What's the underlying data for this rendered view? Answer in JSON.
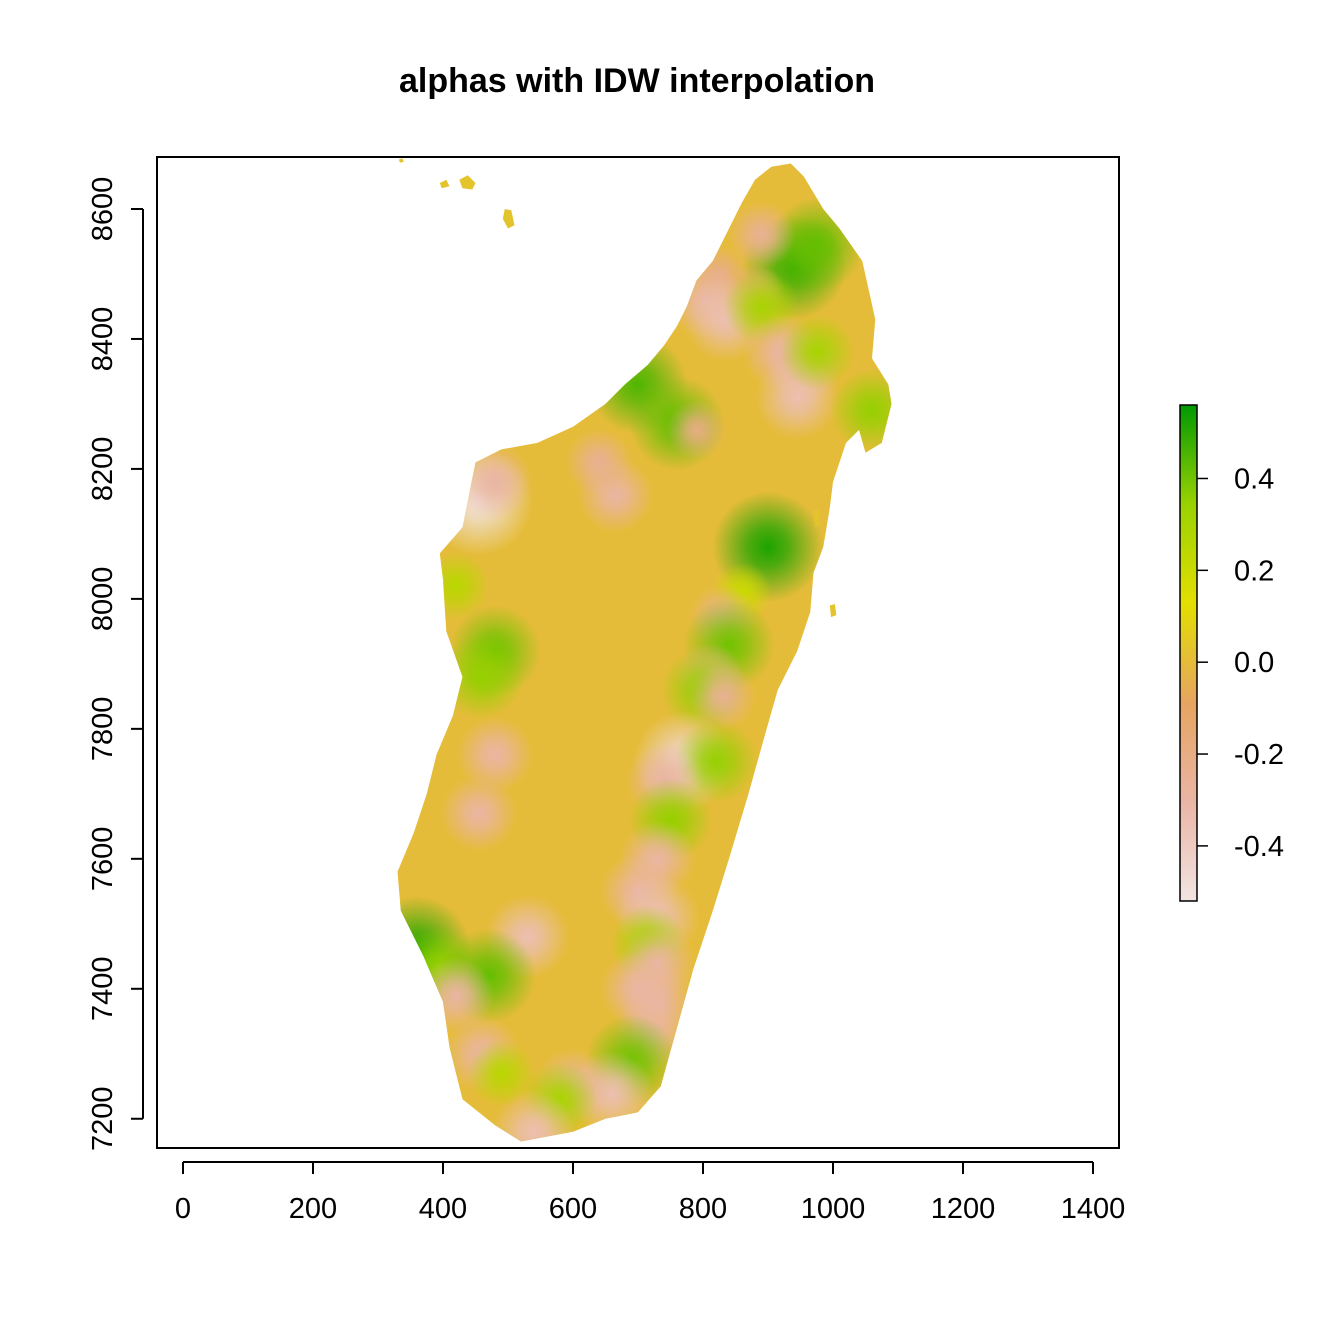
{
  "title": "alphas with IDW interpolation",
  "chart_data": {
    "type": "heatmap",
    "title": "alphas with IDW interpolation",
    "xlabel": "",
    "ylabel": "",
    "xlim": [
      -40,
      1440
    ],
    "ylim": [
      7155,
      8680
    ],
    "x_ticks": [
      0,
      200,
      400,
      600,
      800,
      1000,
      1200,
      1400
    ],
    "y_ticks": [
      7200,
      7400,
      7600,
      7800,
      8000,
      8200,
      8400,
      8600
    ],
    "legend": {
      "position": "right",
      "range": [
        -0.52,
        0.56
      ],
      "ticks": [
        -0.4,
        -0.2,
        0.0,
        0.2,
        0.4
      ],
      "tick_labels": [
        "-0.4",
        "-0.2",
        "0.0",
        "0.2",
        "0.4"
      ],
      "colors": [
        "#f2e5e2",
        "#eab5a5",
        "#e6a460",
        "#e3de00",
        "#99d200",
        "#009900"
      ]
    },
    "base_value": 0.0,
    "outline": [
      [
        935,
        8670
      ],
      [
        955,
        8650
      ],
      [
        985,
        8600
      ],
      [
        1010,
        8570
      ],
      [
        1045,
        8520
      ],
      [
        1065,
        8430
      ],
      [
        1060,
        8370
      ],
      [
        1085,
        8330
      ],
      [
        1090,
        8300
      ],
      [
        1075,
        8240
      ],
      [
        1050,
        8225
      ],
      [
        1040,
        8260
      ],
      [
        1020,
        8240
      ],
      [
        1000,
        8180
      ],
      [
        995,
        8140
      ],
      [
        985,
        8080
      ],
      [
        970,
        8040
      ],
      [
        965,
        7980
      ],
      [
        945,
        7920
      ],
      [
        915,
        7860
      ],
      [
        895,
        7790
      ],
      [
        870,
        7700
      ],
      [
        840,
        7600
      ],
      [
        815,
        7520
      ],
      [
        785,
        7430
      ],
      [
        760,
        7340
      ],
      [
        735,
        7250
      ],
      [
        700,
        7210
      ],
      [
        650,
        7200
      ],
      [
        600,
        7180
      ],
      [
        520,
        7165
      ],
      [
        480,
        7190
      ],
      [
        430,
        7230
      ],
      [
        410,
        7310
      ],
      [
        400,
        7380
      ],
      [
        370,
        7450
      ],
      [
        335,
        7520
      ],
      [
        330,
        7580
      ],
      [
        355,
        7640
      ],
      [
        375,
        7700
      ],
      [
        390,
        7760
      ],
      [
        415,
        7820
      ],
      [
        430,
        7880
      ],
      [
        405,
        7950
      ],
      [
        400,
        8030
      ],
      [
        395,
        8070
      ],
      [
        430,
        8110
      ],
      [
        440,
        8160
      ],
      [
        450,
        8210
      ],
      [
        490,
        8230
      ],
      [
        545,
        8240
      ],
      [
        600,
        8265
      ],
      [
        650,
        8300
      ],
      [
        680,
        8330
      ],
      [
        715,
        8360
      ],
      [
        740,
        8390
      ],
      [
        760,
        8420
      ],
      [
        775,
        8450
      ],
      [
        790,
        8490
      ],
      [
        815,
        8520
      ],
      [
        840,
        8570
      ],
      [
        860,
        8610
      ],
      [
        880,
        8645
      ],
      [
        905,
        8665
      ]
    ],
    "islands": [
      [
        [
          332,
          8676
        ],
        [
          337,
          8678
        ],
        [
          340,
          8673
        ],
        [
          334,
          8671
        ]
      ],
      [
        [
          395,
          8640
        ],
        [
          405,
          8645
        ],
        [
          410,
          8635
        ],
        [
          398,
          8632
        ]
      ],
      [
        [
          425,
          8645
        ],
        [
          438,
          8652
        ],
        [
          450,
          8640
        ],
        [
          445,
          8630
        ],
        [
          430,
          8632
        ]
      ],
      [
        [
          495,
          8600
        ],
        [
          505,
          8598
        ],
        [
          510,
          8575
        ],
        [
          500,
          8570
        ],
        [
          492,
          8585
        ]
      ],
      [
        [
          970,
          8135
        ],
        [
          978,
          8138
        ],
        [
          980,
          8115
        ],
        [
          972,
          8110
        ]
      ],
      [
        [
          995,
          7990
        ],
        [
          1003,
          7992
        ],
        [
          1005,
          7975
        ],
        [
          997,
          7972
        ]
      ]
    ],
    "points": [
      {
        "x": 940,
        "y": 8510,
        "v": 0.48
      },
      {
        "x": 975,
        "y": 8545,
        "v": 0.42
      },
      {
        "x": 890,
        "y": 8560,
        "v": -0.25
      },
      {
        "x": 880,
        "y": 8470,
        "v": -0.2
      },
      {
        "x": 825,
        "y": 8500,
        "v": -0.2
      },
      {
        "x": 805,
        "y": 8460,
        "v": -0.3
      },
      {
        "x": 835,
        "y": 8430,
        "v": -0.35
      },
      {
        "x": 890,
        "y": 8450,
        "v": 0.3
      },
      {
        "x": 920,
        "y": 8380,
        "v": -0.3
      },
      {
        "x": 955,
        "y": 8360,
        "v": -0.3
      },
      {
        "x": 945,
        "y": 8310,
        "v": -0.35
      },
      {
        "x": 975,
        "y": 8380,
        "v": 0.3
      },
      {
        "x": 1060,
        "y": 8290,
        "v": 0.35
      },
      {
        "x": 700,
        "y": 8330,
        "v": 0.45
      },
      {
        "x": 760,
        "y": 8270,
        "v": 0.42
      },
      {
        "x": 790,
        "y": 8260,
        "v": -0.2
      },
      {
        "x": 665,
        "y": 8160,
        "v": -0.3
      },
      {
        "x": 640,
        "y": 8210,
        "v": -0.25
      },
      {
        "x": 455,
        "y": 8150,
        "v": -0.5
      },
      {
        "x": 480,
        "y": 8180,
        "v": -0.3
      },
      {
        "x": 900,
        "y": 8080,
        "v": 0.52
      },
      {
        "x": 860,
        "y": 8010,
        "v": 0.2
      },
      {
        "x": 480,
        "y": 7920,
        "v": 0.4
      },
      {
        "x": 460,
        "y": 7880,
        "v": 0.35
      },
      {
        "x": 420,
        "y": 8020,
        "v": 0.25
      },
      {
        "x": 830,
        "y": 7970,
        "v": -0.25
      },
      {
        "x": 840,
        "y": 7930,
        "v": 0.4
      },
      {
        "x": 810,
        "y": 7880,
        "v": -0.25
      },
      {
        "x": 800,
        "y": 7860,
        "v": 0.35
      },
      {
        "x": 830,
        "y": 7850,
        "v": -0.25
      },
      {
        "x": 480,
        "y": 7760,
        "v": -0.3
      },
      {
        "x": 455,
        "y": 7670,
        "v": -0.3
      },
      {
        "x": 770,
        "y": 7750,
        "v": -0.45
      },
      {
        "x": 820,
        "y": 7750,
        "v": 0.35
      },
      {
        "x": 740,
        "y": 7720,
        "v": -0.3
      },
      {
        "x": 750,
        "y": 7660,
        "v": 0.35
      },
      {
        "x": 730,
        "y": 7600,
        "v": -0.3
      },
      {
        "x": 700,
        "y": 7550,
        "v": -0.3
      },
      {
        "x": 730,
        "y": 7510,
        "v": -0.35
      },
      {
        "x": 715,
        "y": 7470,
        "v": 0.3
      },
      {
        "x": 730,
        "y": 7440,
        "v": -0.3
      },
      {
        "x": 700,
        "y": 7400,
        "v": -0.3
      },
      {
        "x": 730,
        "y": 7380,
        "v": -0.3
      },
      {
        "x": 720,
        "y": 7330,
        "v": -0.3
      },
      {
        "x": 690,
        "y": 7290,
        "v": 0.4
      },
      {
        "x": 660,
        "y": 7240,
        "v": -0.35
      },
      {
        "x": 600,
        "y": 7250,
        "v": -0.3
      },
      {
        "x": 580,
        "y": 7230,
        "v": 0.3
      },
      {
        "x": 540,
        "y": 7180,
        "v": -0.35
      },
      {
        "x": 530,
        "y": 7480,
        "v": -0.35
      },
      {
        "x": 360,
        "y": 7460,
        "v": 0.5
      },
      {
        "x": 395,
        "y": 7430,
        "v": 0.35
      },
      {
        "x": 470,
        "y": 7420,
        "v": 0.42
      },
      {
        "x": 420,
        "y": 7390,
        "v": -0.3
      },
      {
        "x": 460,
        "y": 7300,
        "v": -0.3
      },
      {
        "x": 490,
        "y": 7270,
        "v": 0.25
      }
    ]
  }
}
